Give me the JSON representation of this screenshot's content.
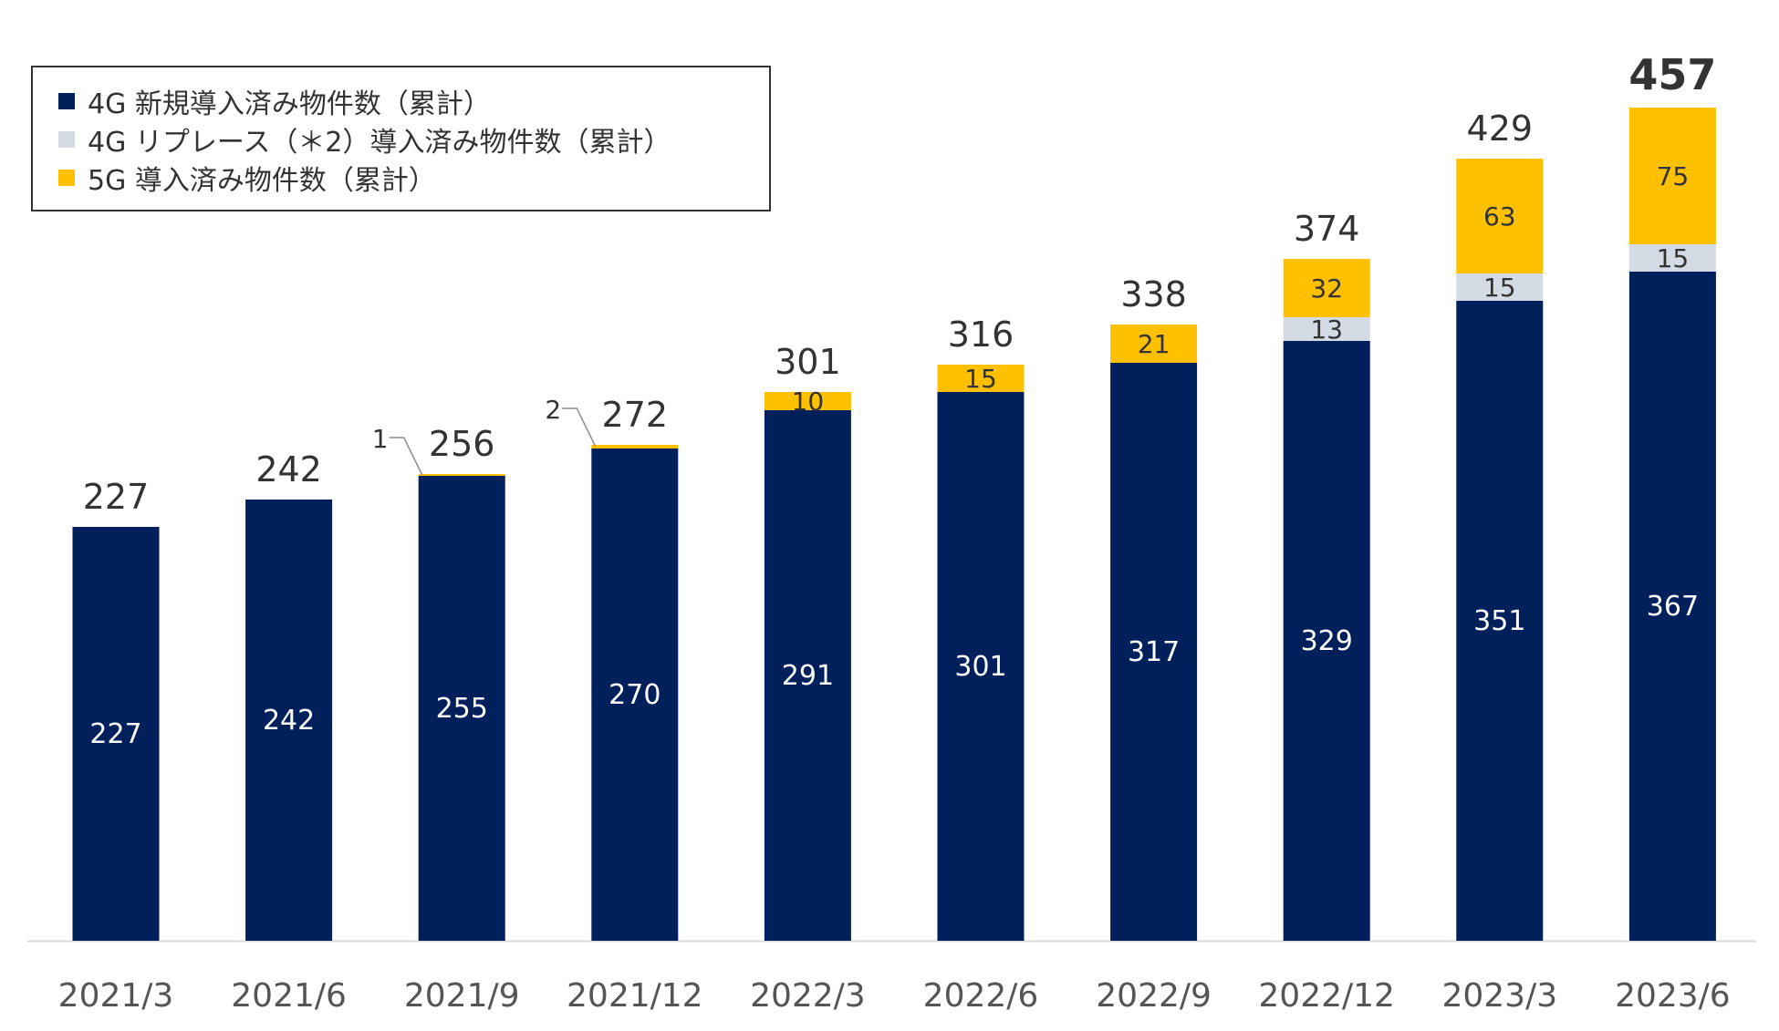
{
  "chart_data": {
    "type": "bar",
    "stacked": true,
    "categories": [
      "2021/3",
      "2021/6",
      "2021/9",
      "2021/12",
      "2022/3",
      "2022/6",
      "2022/9",
      "2022/12",
      "2023/3",
      "2023/6"
    ],
    "series": [
      {
        "name": "4G 新規導入済み物件数（累計）",
        "color": "#00205b",
        "values": [
          227,
          242,
          255,
          270,
          291,
          301,
          317,
          329,
          351,
          367
        ],
        "value_labels": [
          "227",
          "242",
          "255",
          "270",
          "291",
          "301",
          "317",
          "329",
          "351",
          "367"
        ]
      },
      {
        "name": "4G リプレース（＊2）導入済み物件数（累計）",
        "color": "#d5dbe5",
        "values": [
          0,
          0,
          0,
          0,
          0,
          0,
          0,
          13,
          15,
          15
        ],
        "value_labels": [
          "",
          "",
          "",
          "",
          "",
          "",
          "",
          "13",
          "15",
          "15"
        ]
      },
      {
        "name": "5G 導入済み物件数（累計）",
        "color": "#ffc000",
        "values": [
          0,
          0,
          1,
          2,
          10,
          15,
          21,
          32,
          63,
          75
        ],
        "value_labels": [
          "",
          "",
          "1",
          "2",
          "10",
          "15",
          "21",
          "32",
          "63",
          "75"
        ]
      }
    ],
    "totals": [
      227,
      242,
      256,
      272,
      301,
      316,
      338,
      374,
      429,
      457
    ],
    "total_labels": [
      "227",
      "242",
      "256",
      "272",
      "301",
      "316",
      "338",
      "374",
      "429",
      "457"
    ],
    "highlight_total_index": 9,
    "ylim": [
      0,
      480
    ],
    "grid": false,
    "legend_position": "top-left",
    "title": "",
    "xlabel": "",
    "ylabel": ""
  }
}
